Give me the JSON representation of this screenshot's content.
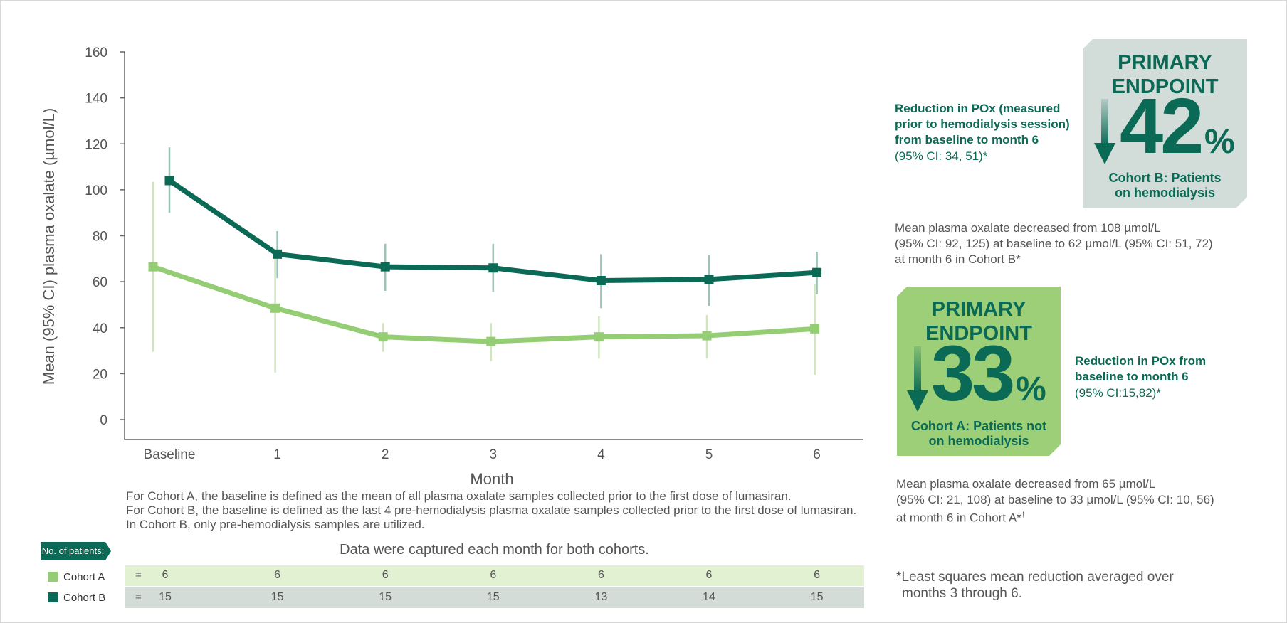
{
  "chart_data": {
    "type": "line",
    "title": "",
    "ylabel": "Mean (95% CI) plasma oxalate (µmol/L)",
    "xlabel": "Month",
    "ylim": [
      0,
      160
    ],
    "yticks": [
      0,
      20,
      40,
      60,
      80,
      100,
      120,
      140,
      160
    ],
    "categories": [
      "Baseline",
      "1",
      "2",
      "3",
      "4",
      "5",
      "6"
    ],
    "series": [
      {
        "name": "Cohort A",
        "color": "#95cd75",
        "values": [
          66.5,
          48.5,
          36,
          34,
          36,
          36.5,
          39.5
        ],
        "ci_low": [
          29.5,
          20.5,
          29.5,
          25.5,
          26.5,
          26.5,
          19.5
        ],
        "ci_high": [
          103.5,
          72,
          42,
          42,
          45,
          45.5,
          59
        ]
      },
      {
        "name": "Cohort B",
        "color": "#0a6a55",
        "values": [
          104,
          72,
          66.5,
          66,
          60.5,
          61,
          64
        ],
        "ci_low": [
          90,
          61.5,
          56,
          55.5,
          48.5,
          49.5,
          54.5
        ],
        "ci_high": [
          118.5,
          82,
          76.5,
          76.5,
          72,
          71.5,
          73
        ]
      }
    ]
  },
  "footnotes": [
    "For Cohort A, the baseline is defined as the mean of all plasma oxalate samples collected prior to the first dose of lumasiran.",
    "For Cohort B, the baseline is defined as the last 4 pre-hemodialysis plasma oxalate samples collected prior to the first dose of lumasiran.",
    "In Cohort B, only pre-hemodialysis samples are utilized."
  ],
  "data_captured": "Data were captured each month for both cohorts.",
  "patients_table": {
    "badge": "No. of patients:",
    "eq": "=",
    "rows": [
      {
        "label": "Cohort A",
        "color": "#95cd75",
        "bg": "#e3f1d3",
        "counts": [
          "6",
          "6",
          "6",
          "6",
          "6",
          "6",
          "6"
        ]
      },
      {
        "label": "Cohort B",
        "color": "#0a6a55",
        "bg": "#d4dcd8",
        "counts": [
          "15",
          "15",
          "15",
          "15",
          "13",
          "14",
          "15"
        ]
      }
    ]
  },
  "endpoint_b": {
    "title_line1": "PRIMARY",
    "title_line2": "ENDPOINT",
    "value": "42",
    "pct": "%",
    "sub_line1": "Cohort B: Patients",
    "sub_line2": "on hemodialysis",
    "box_color": "#d2dcd8",
    "reduction_lines": [
      "Reduction in POx (measured",
      "prior to hemodialysis session)",
      "from baseline to month 6"
    ],
    "ci": "(95% CI: 34, 51)*",
    "desc_lines": [
      "Mean plasma oxalate decreased from 108 µmol/L",
      "(95% CI: 92, 125) at baseline to 62 µmol/L (95% CI: 51, 72)",
      "at month 6 in Cohort B*"
    ]
  },
  "endpoint_a": {
    "title_line1": "PRIMARY",
    "title_line2": "ENDPOINT",
    "value": "33",
    "pct": "%",
    "sub_line1": "Cohort A: Patients not",
    "sub_line2": "on hemodialysis",
    "box_color": "#9ccf78",
    "reduction_lines": [
      "Reduction in POx from",
      "baseline to month 6"
    ],
    "ci": "(95% CI:15,82)*",
    "desc_lines": [
      "Mean plasma oxalate decreased from 65 µmol/L",
      "(95% CI: 21, 108) at baseline to 33 µmol/L (95% CI: 10, 56)",
      "at month 6 in Cohort A*"
    ],
    "desc_sup": "†"
  },
  "lsm_note_lines": [
    "*Least squares mean reduction averaged over",
    "months 3 through 6."
  ]
}
